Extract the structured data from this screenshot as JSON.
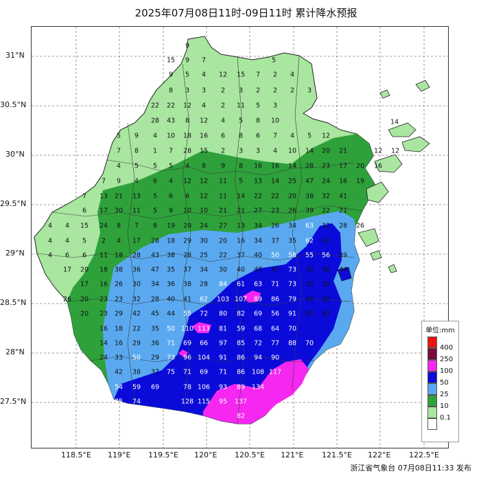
{
  "title": "2025年07月08日11时-09日11时 累计降水预报",
  "footer": "浙江省气象台 07月08日11:33 发布",
  "y_axis": [
    "31°N",
    "30.5°N",
    "30°N",
    "29.5°N",
    "29°N",
    "28.5°N",
    "28°N",
    "27.5°N"
  ],
  "x_axis": [
    "118.5°E",
    "119°E",
    "119.5°E",
    "120°E",
    "120.5°E",
    "121°E",
    "121.5°E",
    "122°E",
    "122.5°E"
  ],
  "legend": {
    "title": "单位:mm",
    "items": [
      {
        "label": "400",
        "color": "#e8160c"
      },
      {
        "label": "250",
        "color": "#7a0a3a"
      },
      {
        "label": "100",
        "color": "#f527f0"
      },
      {
        "label": "50",
        "color": "#0b0bd9"
      },
      {
        "label": "25",
        "color": "#5aa9f0"
      },
      {
        "label": "10",
        "color": "#2ea13b"
      },
      {
        "label": "0.1",
        "color": "#a9e6a0"
      }
    ],
    "bottom_color": "#ffffff"
  },
  "stations": [
    [
      "9",
      272,
      66
    ],
    [
      "15",
      248,
      87
    ],
    [
      "9",
      272,
      87
    ],
    [
      "7",
      296,
      87
    ],
    [
      "5",
      398,
      87
    ],
    [
      "9",
      248,
      108
    ],
    [
      "5",
      272,
      108
    ],
    [
      "4",
      296,
      108
    ],
    [
      "12",
      324,
      108
    ],
    [
      "15",
      350,
      108
    ],
    [
      "7",
      375,
      108
    ],
    [
      "2",
      400,
      108
    ],
    [
      "4",
      425,
      108
    ],
    [
      "8",
      248,
      131
    ],
    [
      "3",
      272,
      131
    ],
    [
      "3",
      296,
      131
    ],
    [
      "2",
      324,
      131
    ],
    [
      "3",
      350,
      131
    ],
    [
      "2",
      375,
      131
    ],
    [
      "2",
      400,
      131
    ],
    [
      "2",
      425,
      131
    ],
    [
      "3",
      450,
      131
    ],
    [
      "22",
      225,
      153
    ],
    [
      "22",
      248,
      153
    ],
    [
      "12",
      272,
      153
    ],
    [
      "4",
      296,
      153
    ],
    [
      "2",
      324,
      153
    ],
    [
      "11",
      350,
      153
    ],
    [
      "5",
      375,
      153
    ],
    [
      "3",
      400,
      153
    ],
    [
      "28",
      225,
      175
    ],
    [
      "43",
      248,
      175
    ],
    [
      "8",
      272,
      175
    ],
    [
      "12",
      296,
      175
    ],
    [
      "4",
      324,
      175
    ],
    [
      "5",
      350,
      175
    ],
    [
      "8",
      375,
      175
    ],
    [
      "10",
      400,
      175
    ],
    [
      "14",
      574,
      177
    ],
    [
      "5",
      172,
      197
    ],
    [
      "9",
      198,
      197
    ],
    [
      "4",
      225,
      197
    ],
    [
      "10",
      248,
      197
    ],
    [
      "18",
      272,
      197
    ],
    [
      "16",
      296,
      197
    ],
    [
      "6",
      324,
      197
    ],
    [
      "8",
      350,
      197
    ],
    [
      "6",
      375,
      197
    ],
    [
      "7",
      400,
      197
    ],
    [
      "4",
      425,
      197
    ],
    [
      "5",
      450,
      197
    ],
    [
      "12",
      474,
      197
    ],
    [
      "7",
      172,
      219
    ],
    [
      "8",
      198,
      219
    ],
    [
      "1",
      225,
      219
    ],
    [
      "7",
      248,
      219
    ],
    [
      "28",
      272,
      219
    ],
    [
      "15",
      296,
      219
    ],
    [
      "2",
      324,
      219
    ],
    [
      "3",
      350,
      219
    ],
    [
      "3",
      375,
      219
    ],
    [
      "4",
      400,
      219
    ],
    [
      "10",
      425,
      219
    ],
    [
      "14",
      450,
      219
    ],
    [
      "20",
      474,
      219
    ],
    [
      "21",
      499,
      219
    ],
    [
      "12",
      550,
      219
    ],
    [
      "12",
      575,
      219
    ],
    [
      "4",
      172,
      241
    ],
    [
      "5",
      198,
      241
    ],
    [
      "5",
      225,
      241
    ],
    [
      "5",
      248,
      241
    ],
    [
      "4",
      272,
      241
    ],
    [
      "8",
      296,
      241
    ],
    [
      "9",
      324,
      241
    ],
    [
      "8",
      350,
      241
    ],
    [
      "16",
      375,
      241
    ],
    [
      "16",
      400,
      241
    ],
    [
      "14",
      425,
      241
    ],
    [
      "28",
      450,
      241
    ],
    [
      "23",
      474,
      241
    ],
    [
      "17",
      499,
      241
    ],
    [
      "20",
      524,
      241
    ],
    [
      "16",
      550,
      241
    ],
    [
      "7",
      150,
      263
    ],
    [
      "9",
      172,
      263
    ],
    [
      "4",
      198,
      263
    ],
    [
      "6",
      225,
      263
    ],
    [
      "4",
      248,
      263
    ],
    [
      "12",
      272,
      263
    ],
    [
      "12",
      296,
      263
    ],
    [
      "11",
      324,
      263
    ],
    [
      "5",
      350,
      263
    ],
    [
      "13",
      375,
      263
    ],
    [
      "14",
      400,
      263
    ],
    [
      "25",
      425,
      263
    ],
    [
      "47",
      450,
      263
    ],
    [
      "24",
      474,
      263
    ],
    [
      "16",
      499,
      263
    ],
    [
      "19",
      524,
      263
    ],
    [
      "7",
      122,
      285
    ],
    [
      "13",
      150,
      285
    ],
    [
      "21",
      172,
      285
    ],
    [
      "13",
      198,
      285
    ],
    [
      "5",
      225,
      285
    ],
    [
      "6",
      248,
      285
    ],
    [
      "6",
      272,
      285
    ],
    [
      "12",
      296,
      285
    ],
    [
      "11",
      324,
      285
    ],
    [
      "14",
      350,
      285
    ],
    [
      "22",
      375,
      285
    ],
    [
      "22",
      400,
      285
    ],
    [
      "20",
      425,
      285
    ],
    [
      "38",
      450,
      285
    ],
    [
      "32",
      474,
      285
    ],
    [
      "41",
      499,
      285
    ],
    [
      "6",
      122,
      306
    ],
    [
      "17",
      150,
      306
    ],
    [
      "30",
      172,
      306
    ],
    [
      "11",
      198,
      306
    ],
    [
      "5",
      225,
      306
    ],
    [
      "9",
      248,
      306
    ],
    [
      "10",
      272,
      306
    ],
    [
      "10",
      296,
      306
    ],
    [
      "21",
      324,
      306
    ],
    [
      "21",
      350,
      306
    ],
    [
      "27",
      375,
      306
    ],
    [
      "23",
      400,
      306
    ],
    [
      "26",
      425,
      306
    ],
    [
      "39",
      450,
      306
    ],
    [
      "22",
      474,
      306
    ],
    [
      "21",
      499,
      306
    ],
    [
      "4",
      72,
      328
    ],
    [
      "4",
      97,
      328
    ],
    [
      "15",
      122,
      328
    ],
    [
      "24",
      150,
      328
    ],
    [
      "8",
      172,
      328
    ],
    [
      "7",
      198,
      328
    ],
    [
      "8",
      225,
      328
    ],
    [
      "19",
      248,
      328
    ],
    [
      "20",
      272,
      328
    ],
    [
      "24",
      296,
      328
    ],
    [
      "27",
      324,
      328
    ],
    [
      "13",
      350,
      328
    ],
    [
      "34",
      375,
      328
    ],
    [
      "26",
      400,
      328
    ],
    [
      "34",
      425,
      328
    ],
    [
      "63",
      450,
      328
    ],
    [
      "32",
      474,
      328
    ],
    [
      "28",
      499,
      328
    ],
    [
      "26",
      524,
      328
    ],
    [
      "4",
      72,
      350
    ],
    [
      "4",
      97,
      350
    ],
    [
      "5",
      122,
      350
    ],
    [
      "2",
      150,
      350
    ],
    [
      "4",
      172,
      350
    ],
    [
      "17",
      198,
      350
    ],
    [
      "28",
      225,
      350
    ],
    [
      "18",
      248,
      350
    ],
    [
      "29",
      272,
      350
    ],
    [
      "30",
      296,
      350
    ],
    [
      "20",
      324,
      350
    ],
    [
      "16",
      350,
      350
    ],
    [
      "34",
      375,
      350
    ],
    [
      "37",
      400,
      350
    ],
    [
      "35",
      425,
      350
    ],
    [
      "62",
      450,
      350
    ],
    [
      "42",
      474,
      350
    ],
    [
      "4",
      72,
      371
    ],
    [
      "6",
      97,
      371
    ],
    [
      "6",
      122,
      371
    ],
    [
      "11",
      150,
      371
    ],
    [
      "18",
      172,
      371
    ],
    [
      "28",
      198,
      371
    ],
    [
      "43",
      225,
      371
    ],
    [
      "38",
      248,
      371
    ],
    [
      "28",
      272,
      371
    ],
    [
      "25",
      296,
      371
    ],
    [
      "22",
      324,
      371
    ],
    [
      "37",
      350,
      371
    ],
    [
      "40",
      375,
      371
    ],
    [
      "50",
      400,
      371
    ],
    [
      "58",
      425,
      371
    ],
    [
      "55",
      450,
      371
    ],
    [
      "56",
      474,
      371
    ],
    [
      "39",
      499,
      371
    ],
    [
      "17",
      97,
      392
    ],
    [
      "20",
      122,
      392
    ],
    [
      "18",
      150,
      392
    ],
    [
      "38",
      172,
      392
    ],
    [
      "36",
      198,
      392
    ],
    [
      "47",
      225,
      392
    ],
    [
      "35",
      248,
      392
    ],
    [
      "37",
      272,
      392
    ],
    [
      "34",
      296,
      392
    ],
    [
      "30",
      324,
      392
    ],
    [
      "40",
      350,
      392
    ],
    [
      "47",
      375,
      392
    ],
    [
      "47",
      400,
      392
    ],
    [
      "73",
      425,
      392
    ],
    [
      "39",
      450,
      392
    ],
    [
      "40",
      474,
      392
    ],
    [
      "44",
      499,
      392
    ],
    [
      "17",
      122,
      413
    ],
    [
      "16",
      150,
      413
    ],
    [
      "26",
      172,
      413
    ],
    [
      "30",
      198,
      413
    ],
    [
      "34",
      225,
      413
    ],
    [
      "36",
      248,
      413
    ],
    [
      "38",
      272,
      413
    ],
    [
      "28",
      296,
      413
    ],
    [
      "84",
      324,
      413
    ],
    [
      "61",
      350,
      413
    ],
    [
      "63",
      375,
      413
    ],
    [
      "71",
      400,
      413
    ],
    [
      "73",
      425,
      413
    ],
    [
      "35",
      450,
      413
    ],
    [
      "35",
      474,
      413
    ],
    [
      "26",
      97,
      435
    ],
    [
      "20",
      122,
      435
    ],
    [
      "23",
      150,
      435
    ],
    [
      "23",
      172,
      435
    ],
    [
      "32",
      198,
      435
    ],
    [
      "28",
      225,
      435
    ],
    [
      "40",
      248,
      435
    ],
    [
      "41",
      272,
      435
    ],
    [
      "62",
      296,
      435
    ],
    [
      "103",
      324,
      435
    ],
    [
      "107",
      350,
      435
    ],
    [
      "89",
      375,
      435
    ],
    [
      "86",
      400,
      435
    ],
    [
      "79",
      425,
      435
    ],
    [
      "42",
      450,
      435
    ],
    [
      "32",
      474,
      435
    ],
    [
      "20",
      122,
      456
    ],
    [
      "23",
      150,
      456
    ],
    [
      "29",
      172,
      456
    ],
    [
      "42",
      198,
      456
    ],
    [
      "45",
      225,
      456
    ],
    [
      "44",
      248,
      456
    ],
    [
      "55",
      272,
      456
    ],
    [
      "72",
      296,
      456
    ],
    [
      "80",
      324,
      456
    ],
    [
      "82",
      350,
      456
    ],
    [
      "69",
      375,
      456
    ],
    [
      "56",
      400,
      456
    ],
    [
      "91",
      425,
      456
    ],
    [
      "45",
      450,
      456
    ],
    [
      "45",
      474,
      456
    ],
    [
      "16",
      150,
      478
    ],
    [
      "18",
      172,
      478
    ],
    [
      "22",
      198,
      478
    ],
    [
      "35",
      225,
      478
    ],
    [
      "50",
      248,
      478
    ],
    [
      "110",
      272,
      478
    ],
    [
      "113",
      296,
      478
    ],
    [
      "81",
      324,
      478
    ],
    [
      "59",
      350,
      478
    ],
    [
      "68",
      375,
      478
    ],
    [
      "64",
      400,
      478
    ],
    [
      "70",
      425,
      478
    ],
    [
      "14",
      150,
      499
    ],
    [
      "16",
      172,
      499
    ],
    [
      "29",
      198,
      499
    ],
    [
      "36",
      225,
      499
    ],
    [
      "71",
      248,
      499
    ],
    [
      "69",
      272,
      499
    ],
    [
      "66",
      296,
      499
    ],
    [
      "97",
      324,
      499
    ],
    [
      "85",
      350,
      499
    ],
    [
      "72",
      375,
      499
    ],
    [
      "77",
      400,
      499
    ],
    [
      "88",
      425,
      499
    ],
    [
      "70",
      450,
      499
    ],
    [
      "24",
      150,
      520
    ],
    [
      "33",
      172,
      520
    ],
    [
      "50",
      198,
      520
    ],
    [
      "29",
      225,
      520
    ],
    [
      "73",
      248,
      520
    ],
    [
      "96",
      272,
      520
    ],
    [
      "104",
      296,
      520
    ],
    [
      "91",
      324,
      520
    ],
    [
      "86",
      350,
      520
    ],
    [
      "94",
      375,
      520
    ],
    [
      "90",
      400,
      520
    ],
    [
      "42",
      172,
      541
    ],
    [
      "38",
      198,
      541
    ],
    [
      "37",
      225,
      541
    ],
    [
      "75",
      248,
      541
    ],
    [
      "71",
      272,
      541
    ],
    [
      "69",
      296,
      541
    ],
    [
      "71",
      324,
      541
    ],
    [
      "86",
      350,
      541
    ],
    [
      "108",
      375,
      541
    ],
    [
      "117",
      400,
      541
    ],
    [
      "54",
      172,
      563
    ],
    [
      "59",
      198,
      563
    ],
    [
      "69",
      225,
      563
    ],
    [
      "78",
      272,
      563
    ],
    [
      "106",
      296,
      563
    ],
    [
      "93",
      324,
      563
    ],
    [
      "89",
      350,
      563
    ],
    [
      "134",
      375,
      563
    ],
    [
      "75",
      172,
      584
    ],
    [
      "74",
      198,
      584
    ],
    [
      "128",
      272,
      584
    ],
    [
      "115",
      296,
      584
    ],
    [
      "95",
      324,
      584
    ],
    [
      "137",
      350,
      584
    ],
    [
      "122",
      272,
      605
    ],
    [
      "82",
      350,
      605
    ]
  ]
}
